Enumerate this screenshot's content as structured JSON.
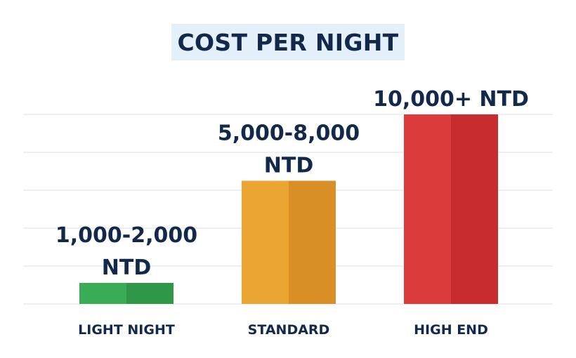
{
  "chart_data": {
    "type": "bar",
    "title": "COST PER NIGHT",
    "categories": [
      "LIGHT NIGHT",
      "STANDARD",
      "HIGH END"
    ],
    "values": [
      1500,
      6500,
      10000
    ],
    "value_labels": [
      [
        "1,000-2,000",
        "NTD"
      ],
      [
        "5,000-8,000",
        "NTD"
      ],
      [
        "10,000+ NTD"
      ]
    ],
    "colors": [
      "#3aac55",
      "#eaa532",
      "#dc3b3b"
    ],
    "colors_dark": [
      "#2f9748",
      "#d98f25",
      "#c92c2e"
    ],
    "grid": true,
    "ylim": [
      0,
      10000
    ]
  }
}
